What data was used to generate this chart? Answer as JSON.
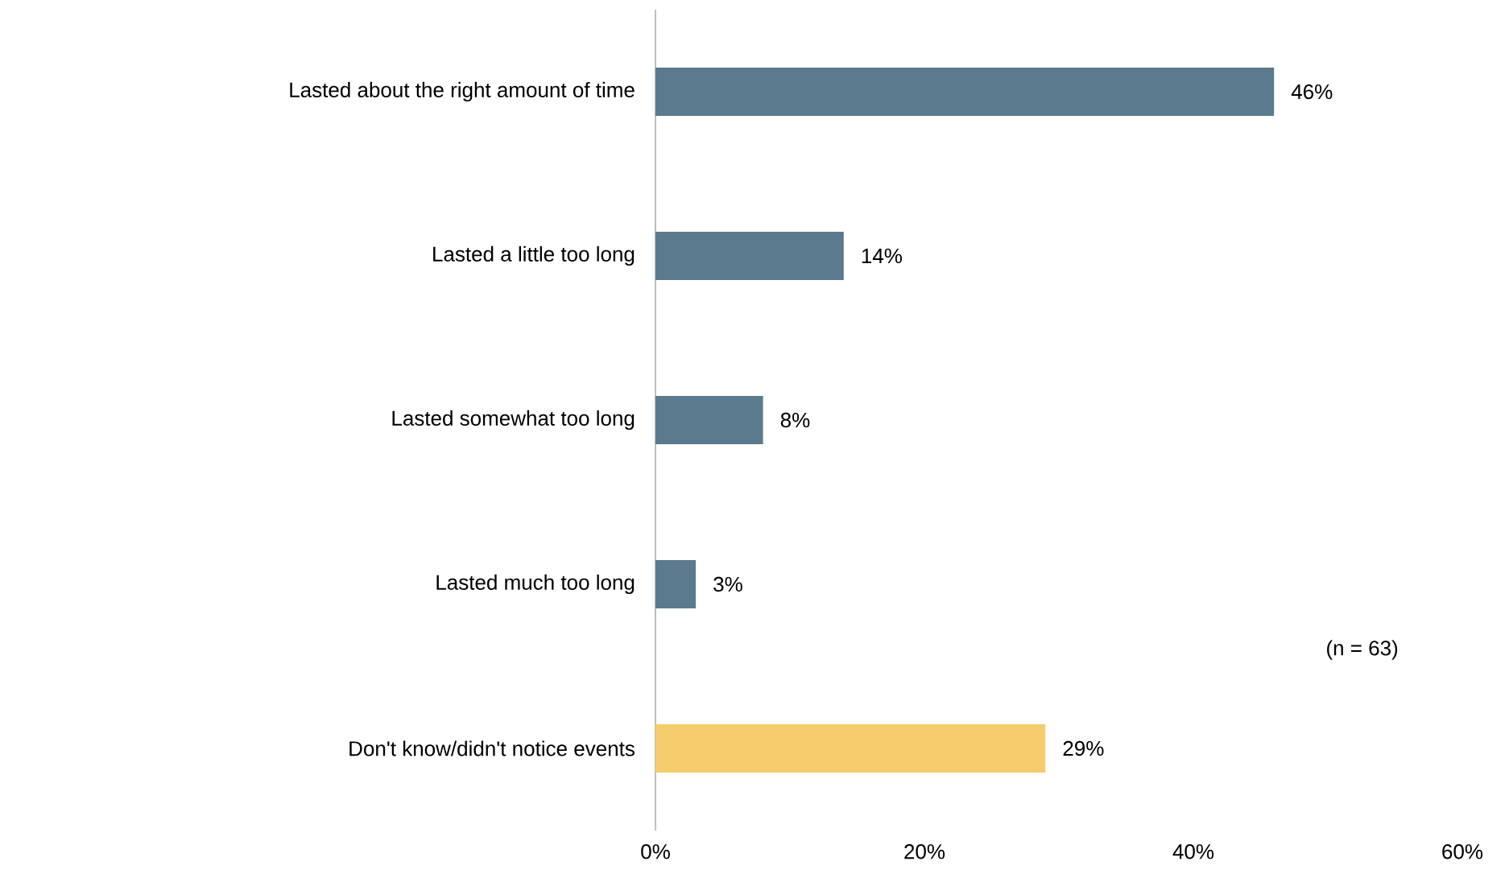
{
  "chart_data": {
    "type": "bar",
    "orientation": "horizontal",
    "categories": [
      "Lasted about the right amount of time",
      "Lasted a little too long",
      "Lasted somewhat too long",
      "Lasted much too long",
      "Don't know/didn't notice events"
    ],
    "values": [
      46,
      14,
      8,
      3,
      29
    ],
    "colors": [
      "#5b7a8e",
      "#5b7a8e",
      "#5b7a8e",
      "#5b7a8e",
      "#f6cb6b"
    ],
    "value_labels": [
      "46%",
      "14%",
      "8%",
      "3%",
      "29%"
    ],
    "xlim": [
      0,
      60
    ],
    "xticks": [
      {
        "value": 0,
        "label": "0%"
      },
      {
        "value": 20,
        "label": "20%"
      },
      {
        "value": 40,
        "label": "40%"
      },
      {
        "value": 60,
        "label": "60%"
      }
    ],
    "annotations": [
      "(n = 63)"
    ]
  }
}
